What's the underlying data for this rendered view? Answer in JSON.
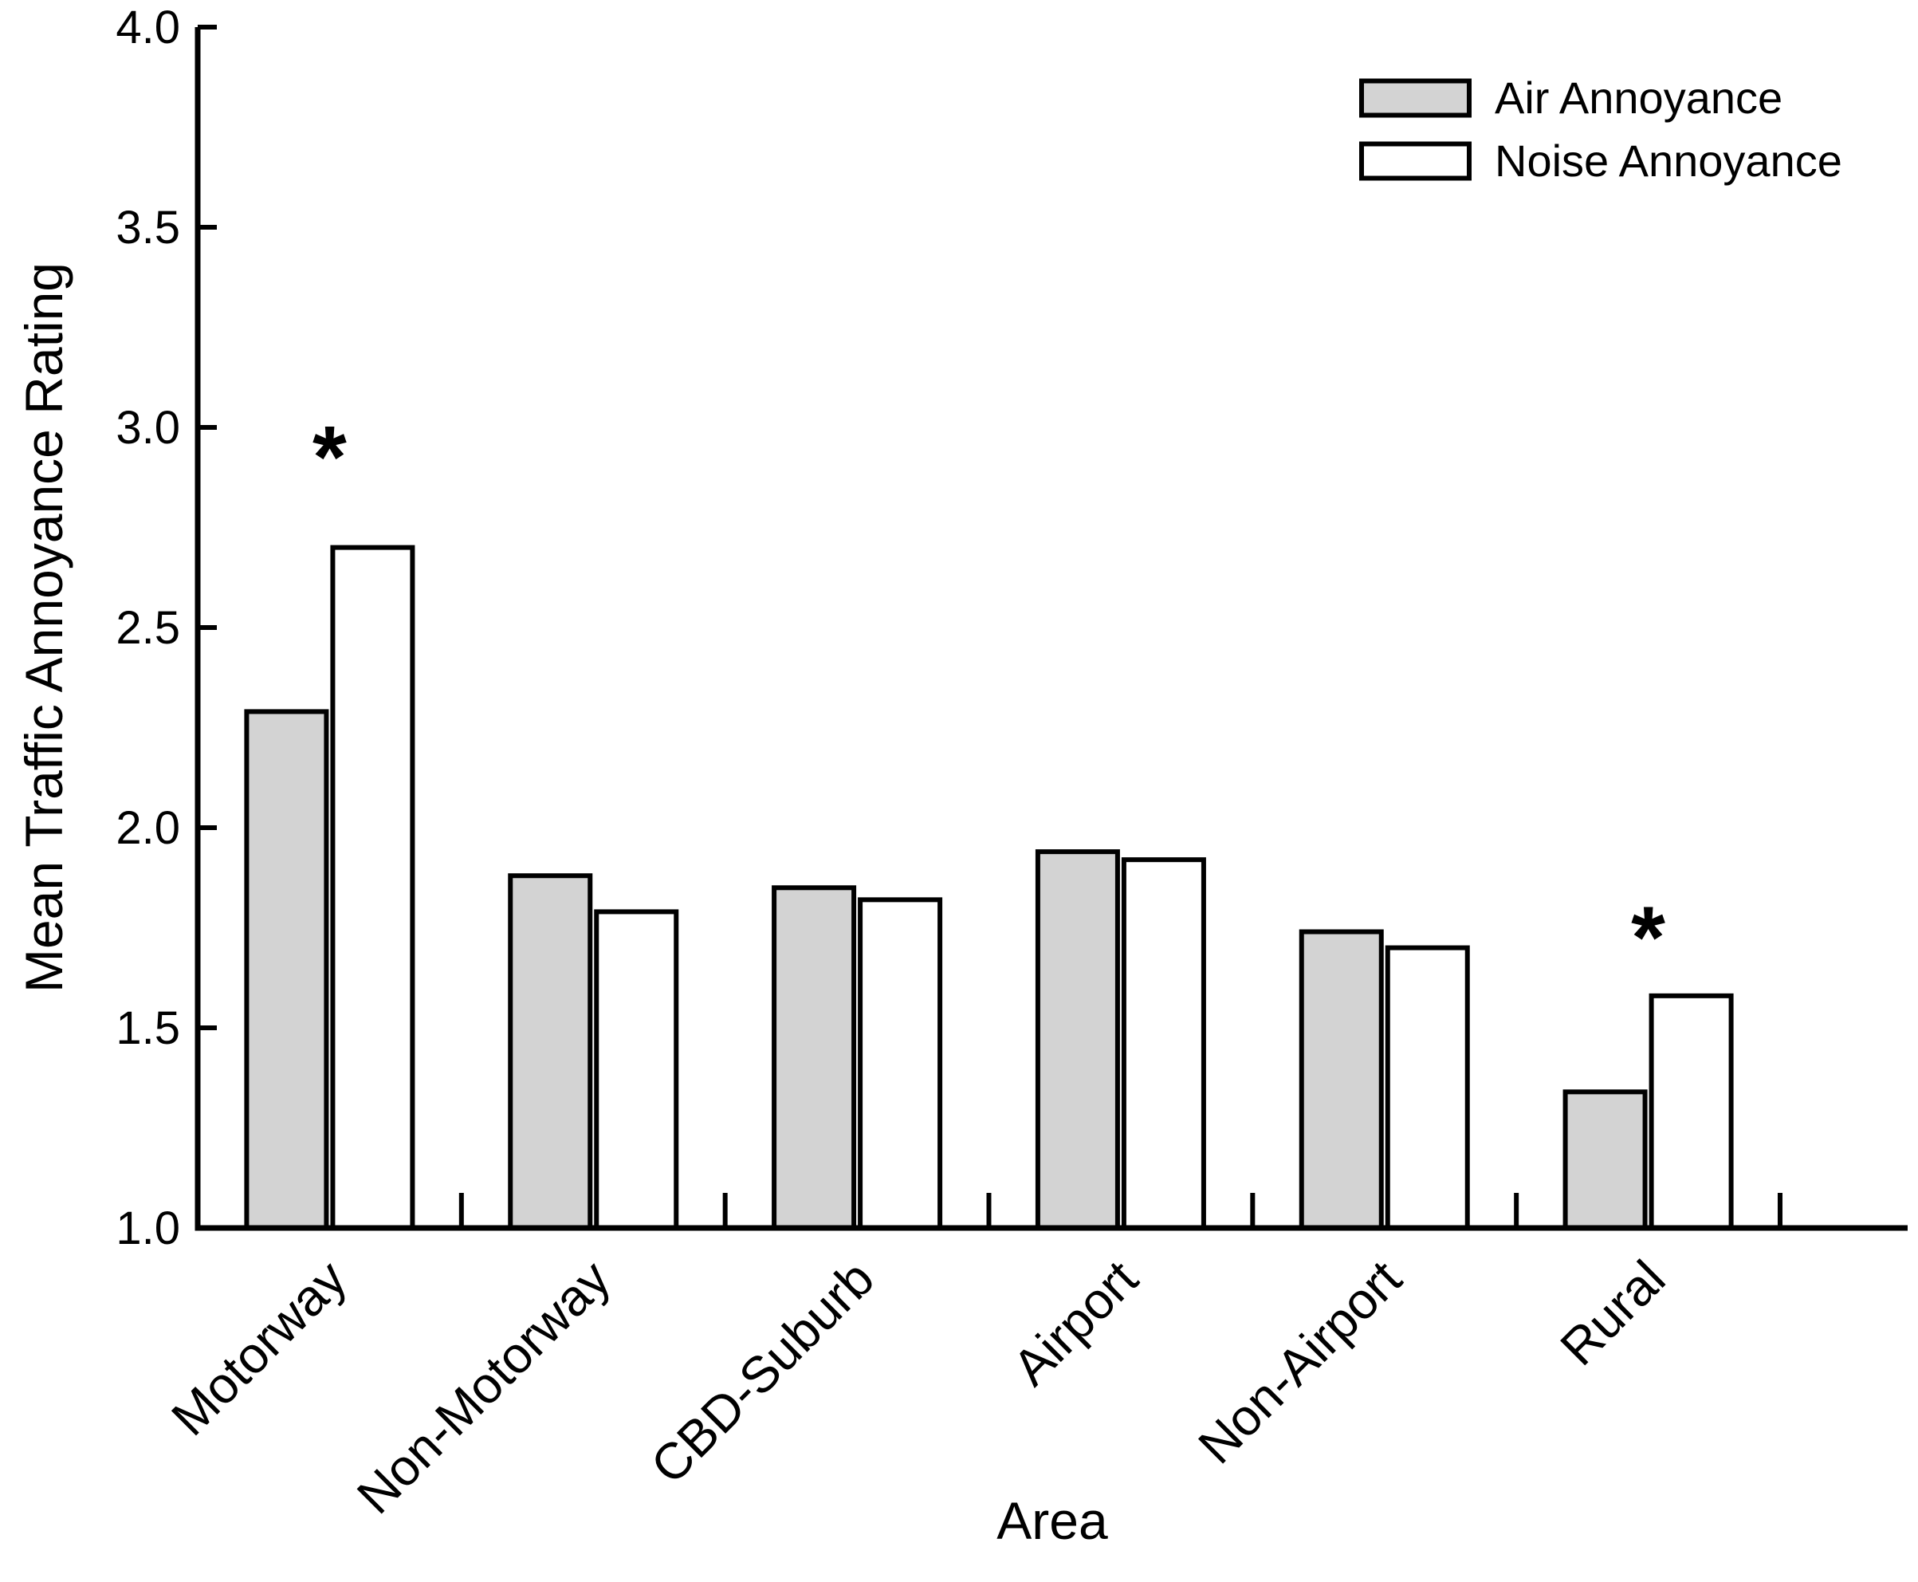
{
  "page": {
    "background": "#FFFFFF"
  },
  "chart_data": {
    "type": "bar",
    "title": "",
    "xlabel": "Area",
    "ylabel": "Mean Traffic Annoyance Rating",
    "ylim": [
      1.0,
      4.0
    ],
    "ytick_step": 0.5,
    "yticks": [
      "1.0",
      "1.5",
      "2.0",
      "2.5",
      "3.0",
      "3.5",
      "4.0"
    ],
    "categories": [
      "Motorway",
      "Non-Motorway",
      "CBD-Suburb",
      "Airport",
      "Non-Airport",
      "Rural"
    ],
    "series": [
      {
        "name": "Air Annoyance",
        "fill": "#D3D3D3",
        "values": [
          2.29,
          1.88,
          1.85,
          1.94,
          1.74,
          1.34
        ]
      },
      {
        "name": "Noise Annoyance",
        "fill": "#FFFFFF",
        "values": [
          2.7,
          1.79,
          1.82,
          1.92,
          1.7,
          1.58
        ]
      }
    ],
    "annotations": [
      {
        "symbol": "*",
        "category": "Motorway",
        "y": 2.97
      },
      {
        "symbol": "*",
        "category": "Rural",
        "y": 1.77
      }
    ],
    "legend_position": "top-right",
    "grid": false,
    "axis_color": "#000000",
    "bar_outline_color": "#000000",
    "text_color": "#000000"
  }
}
